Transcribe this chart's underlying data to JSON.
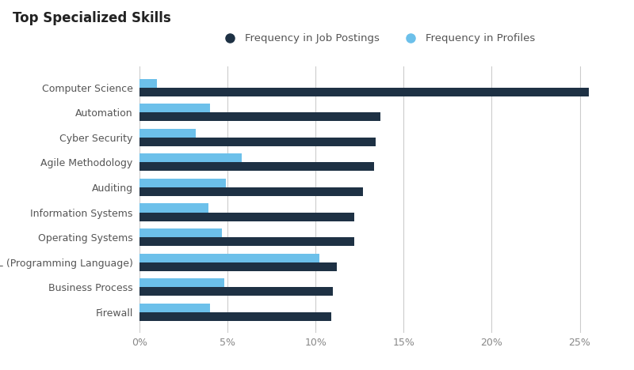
{
  "title": "Top Specialized Skills",
  "legend_labels": [
    "Frequency in Job Postings",
    "Frequency in Profiles"
  ],
  "categories": [
    "Computer Science",
    "Automation",
    "Cyber Security",
    "Agile Methodology",
    "Auditing",
    "Information Systems",
    "Operating Systems",
    "SQL (Programming Language)",
    "Business Process",
    "Firewall"
  ],
  "job_postings": [
    25.5,
    13.7,
    13.4,
    13.3,
    12.7,
    12.2,
    12.2,
    11.2,
    11.0,
    10.9
  ],
  "profiles": [
    1.0,
    4.0,
    3.2,
    5.8,
    4.9,
    3.9,
    4.7,
    10.2,
    4.8,
    4.0
  ],
  "color_job": "#1e3144",
  "color_profile": "#6cc0ea",
  "background_color": "#ffffff",
  "xlim": [
    0,
    27
  ],
  "xticks": [
    0,
    5,
    10,
    15,
    20,
    25
  ],
  "xtick_labels": [
    "0%",
    "5%",
    "10%",
    "15%",
    "20%",
    "25%"
  ],
  "title_fontsize": 12,
  "label_fontsize": 9,
  "tick_fontsize": 9,
  "bar_height": 0.35,
  "legend_fontsize": 9.5
}
